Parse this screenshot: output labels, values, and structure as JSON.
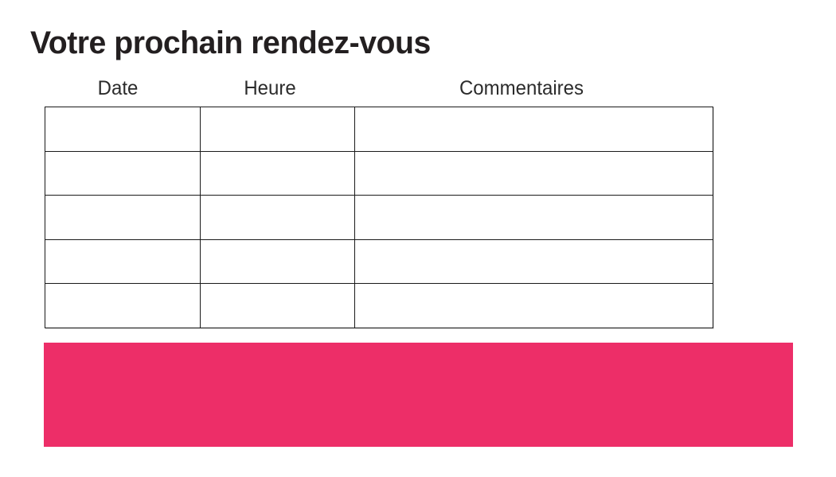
{
  "title": "Votre prochain rendez-vous",
  "table": {
    "headers": [
      "Date",
      "Heure",
      "Commentaires"
    ],
    "rows": [
      [
        "",
        "",
        ""
      ],
      [
        "",
        "",
        ""
      ],
      [
        "",
        "",
        ""
      ],
      [
        "",
        "",
        ""
      ],
      [
        "",
        "",
        ""
      ]
    ]
  },
  "colors": {
    "accent_pink": "#ED2E68",
    "title_text": "#231F20",
    "header_text": "#2B2B2B",
    "table_border": "#1A1A1A",
    "background": "#FFFFFF"
  }
}
